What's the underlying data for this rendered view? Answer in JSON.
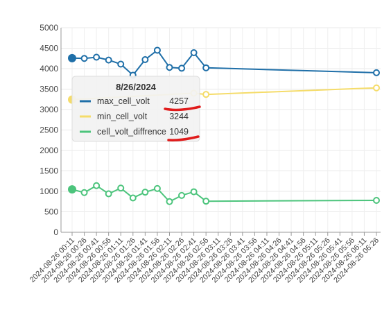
{
  "chart_data": {
    "type": "line",
    "x": [
      "2024-08-26 00:11",
      "2024-08-26 00:26",
      "2024-08-26 00:41",
      "2024-08-26 00:56",
      "2024-08-26 01:11",
      "2024-08-26 01:26",
      "2024-08-26 01:41",
      "2024-08-26 01:56",
      "2024-08-26 02:11",
      "2024-08-26 02:26",
      "2024-08-26 02:41",
      "2024-08-26 02:56",
      "2024-08-26 03:11",
      "2024-08-26 03:26",
      "2024-08-26 03:41",
      "2024-08-26 03:56",
      "2024-08-26 04:11",
      "2024-08-26 04:26",
      "2024-08-26 04:41",
      "2024-08-26 04:56",
      "2024-08-26 05:11",
      "2024-08-26 05:26",
      "2024-08-26 05:41",
      "2024-08-26 05:56",
      "2024-08-26 06:11",
      "2024-08-26 06:26"
    ],
    "series": [
      {
        "name": "max_cell_volt",
        "color": "#1f6fa8",
        "values": [
          4257,
          4250,
          4280,
          4210,
          4110,
          3840,
          4220,
          4450,
          4030,
          4010,
          4390,
          4020,
          null,
          null,
          null,
          null,
          null,
          null,
          null,
          null,
          null,
          null,
          null,
          null,
          null,
          3900
        ]
      },
      {
        "name": "min_cell_volt",
        "color": "#f5dc6a",
        "values": [
          3244,
          null,
          null,
          null,
          null,
          null,
          null,
          null,
          null,
          null,
          3400,
          3370,
          null,
          null,
          null,
          null,
          null,
          null,
          null,
          null,
          null,
          null,
          null,
          null,
          null,
          3530
        ]
      },
      {
        "name": "cell_volt_diffrence",
        "color": "#4cc47c",
        "values": [
          1049,
          970,
          1140,
          940,
          1080,
          840,
          980,
          1070,
          750,
          900,
          990,
          760,
          null,
          null,
          null,
          null,
          null,
          null,
          null,
          null,
          null,
          null,
          null,
          null,
          null,
          780
        ]
      }
    ],
    "yticks": [
      "0",
      "500",
      "1000",
      "1500",
      "2000",
      "2500",
      "3000",
      "3500",
      "4000",
      "4500",
      "5000"
    ],
    "ylim": [
      0,
      5000
    ],
    "grid": true,
    "tooltip": {
      "title": "8/26/2024",
      "rows": [
        {
          "label": "max_cell_volt",
          "value": "4257",
          "color": "#1f6fa8"
        },
        {
          "label": "min_cell_volt",
          "value": "3244",
          "color": "#f5dc6a"
        },
        {
          "label": "cell_volt_diffrence",
          "value": "1049",
          "color": "#4cc47c"
        }
      ]
    },
    "annotation_color": "#e01b1b"
  }
}
